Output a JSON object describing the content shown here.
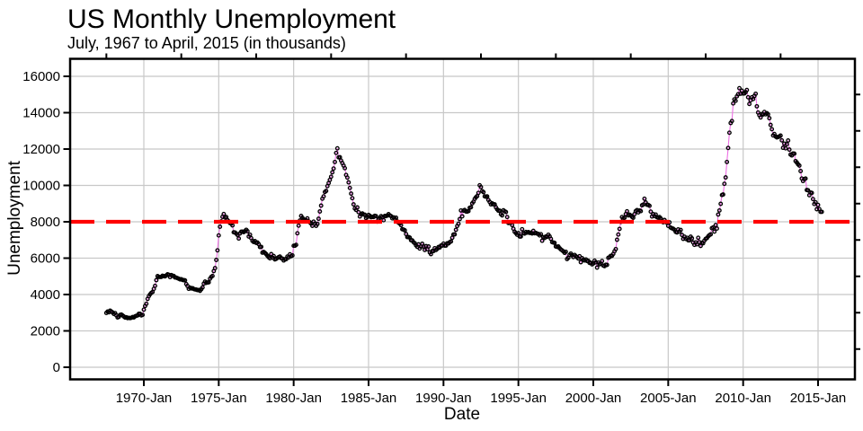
{
  "chart_data": {
    "type": "line",
    "title": "US Monthly Unemployment",
    "subtitle": "July, 1967 to April, 2015 (in thousands)",
    "xlabel": "Date",
    "ylabel": "Unemployment",
    "x_ticks": [
      {
        "t": 1970,
        "label": "1970-Jan"
      },
      {
        "t": 1975,
        "label": "1975-Jan"
      },
      {
        "t": 1980,
        "label": "1980-Jan"
      },
      {
        "t": 1985,
        "label": "1985-Jan"
      },
      {
        "t": 1990,
        "label": "1990-Jan"
      },
      {
        "t": 1995,
        "label": "1995-Jan"
      },
      {
        "t": 2000,
        "label": "2000-Jan"
      },
      {
        "t": 2005,
        "label": "2005-Jan"
      },
      {
        "t": 2010,
        "label": "2010-Jan"
      },
      {
        "t": 2015,
        "label": "2015-Jan"
      }
    ],
    "x_minor_ticks": [
      1967.5,
      1972.5,
      1977.5,
      1982.5,
      1987.5,
      1992.5,
      1997.5,
      2002.5,
      2007.5,
      2012.5
    ],
    "y_ticks": [
      0,
      2000,
      4000,
      6000,
      8000,
      10000,
      12000,
      14000,
      16000
    ],
    "y_minor_ticks": [
      1000,
      3000,
      5000,
      7000,
      9000,
      11000,
      13000,
      15000
    ],
    "ylim": [
      0,
      16000
    ],
    "grid": true,
    "legend": "none",
    "reference_line": {
      "value": 8000,
      "color": "#ff0000",
      "style": "dashed"
    },
    "colors": {
      "grid": "#c8c8c8",
      "frame": "#000000",
      "background": "#ffffff"
    },
    "series": [
      {
        "name": "US unemployment level",
        "units": "thousands",
        "frequency": "monthly",
        "start_year": 1967,
        "start_month": 7,
        "end_year": 2015,
        "end_month": 4,
        "marker": "open-circle",
        "marker_color": "#000000",
        "line_color": "#ee6fe5",
        "values": [
          2990,
          3060,
          3020,
          3110,
          3060,
          3010,
          2930,
          2980,
          2860,
          2740,
          2770,
          2880,
          2900,
          2850,
          2790,
          2730,
          2750,
          2700,
          2720,
          2700,
          2720,
          2760,
          2740,
          2800,
          2830,
          2850,
          2940,
          2940,
          2850,
          2880,
          3170,
          3370,
          3490,
          3760,
          3910,
          4010,
          4090,
          4140,
          4310,
          4480,
          4790,
          5010,
          4970,
          4970,
          4970,
          5030,
          5010,
          5000,
          5050,
          5110,
          5080,
          4960,
          5070,
          5030,
          5020,
          4940,
          4930,
          4900,
          4870,
          4830,
          4840,
          4800,
          4790,
          4780,
          4580,
          4470,
          4310,
          4380,
          4330,
          4350,
          4300,
          4280,
          4270,
          4240,
          4250,
          4200,
          4290,
          4390,
          4600,
          4710,
          4640,
          4660,
          4670,
          4870,
          4970,
          5020,
          5290,
          5450,
          5900,
          6430,
          7250,
          7730,
          8020,
          8270,
          8430,
          8230,
          8260,
          8090,
          8020,
          7930,
          7900,
          7800,
          7420,
          7410,
          7350,
          7280,
          7080,
          7360,
          7450,
          7460,
          7430,
          7480,
          7560,
          7480,
          7190,
          7290,
          7100,
          6950,
          6890,
          6940,
          6840,
          6860,
          6770,
          6610,
          6620,
          6300,
          6340,
          6290,
          6220,
          6130,
          6050,
          5990,
          6220,
          6030,
          6120,
          5930,
          5960,
          6010,
          6060,
          6090,
          6000,
          5970,
          5870,
          5940,
          5940,
          6090,
          6040,
          6210,
          6110,
          6150,
          6680,
          6680,
          6730,
          7370,
          7790,
          8070,
          8320,
          8220,
          8130,
          8060,
          8090,
          8190,
          8020,
          7970,
          7900,
          7780,
          8010,
          7900,
          7780,
          7880,
          8170,
          8570,
          8890,
          9270,
          9400,
          9640,
          9700,
          9960,
          10130,
          10300,
          10480,
          10720,
          10930,
          11290,
          11790,
          12040,
          11540,
          11550,
          11370,
          11230,
          11090,
          10950,
          10580,
          10430,
          10170,
          9860,
          9550,
          9300,
          8960,
          8730,
          8650,
          8790,
          8530,
          8290,
          8420,
          8460,
          8400,
          8390,
          8200,
          8260,
          8380,
          8330,
          8250,
          8270,
          8260,
          8330,
          8310,
          8010,
          8140,
          8210,
          8310,
          8260,
          8090,
          8320,
          8310,
          8340,
          8420,
          8350,
          8310,
          8190,
          8240,
          8160,
          8220,
          8020,
          7950,
          7900,
          7810,
          7590,
          7570,
          7530,
          7330,
          7160,
          7160,
          7130,
          6990,
          6980,
          6880,
          6820,
          6700,
          6620,
          6760,
          6530,
          6630,
          6790,
          6640,
          6450,
          6660,
          6490,
          6640,
          6310,
          6220,
          6390,
          6390,
          6550,
          6450,
          6510,
          6610,
          6590,
          6690,
          6690,
          6800,
          6690,
          6690,
          6820,
          6810,
          6880,
          6920,
          7120,
          7300,
          7310,
          7560,
          7770,
          7890,
          8150,
          8620,
          8300,
          8610,
          8650,
          8570,
          8560,
          8590,
          8770,
          8800,
          9010,
          9100,
          9260,
          9350,
          9410,
          9590,
          10010,
          9910,
          9690,
          9630,
          9400,
          9380,
          9400,
          9200,
          9090,
          8960,
          9010,
          8960,
          8960,
          8790,
          8680,
          8610,
          8610,
          8420,
          8350,
          8630,
          8580,
          8540,
          8260,
          7930,
          7970,
          7950,
          7820,
          7620,
          7450,
          7380,
          7290,
          7380,
          7190,
          7190,
          7590,
          7380,
          7350,
          7440,
          7400,
          7430,
          7390,
          7400,
          7360,
          7500,
          7370,
          7390,
          7350,
          7330,
          7250,
          7320,
          6960,
          7150,
          7110,
          7190,
          7170,
          7290,
          7200,
          7060,
          6880,
          6860,
          6840,
          6640,
          6620,
          6640,
          6550,
          6480,
          6430,
          6370,
          6290,
          6350,
          5950,
          6020,
          6180,
          6250,
          6170,
          6060,
          6180,
          6110,
          6050,
          5980,
          6110,
          5780,
          6000,
          5910,
          5870,
          5930,
          5840,
          5850,
          5740,
          5750,
          5660,
          5710,
          5860,
          5770,
          5480,
          5760,
          5660,
          5700,
          5840,
          5590,
          5560,
          5640,
          5630,
          6020,
          6060,
          6130,
          6130,
          6230,
          6380,
          6500,
          7010,
          7300,
          7610,
          7990,
          8260,
          8180,
          8220,
          8420,
          8580,
          8350,
          8390,
          8340,
          8270,
          8220,
          8420,
          8590,
          8640,
          8520,
          8620,
          8590,
          8910,
          8950,
          9270,
          9060,
          8940,
          8930,
          8880,
          8560,
          8290,
          8420,
          8310,
          8400,
          8250,
          8220,
          8260,
          8190,
          8060,
          7970,
          8100,
          8000,
          7940,
          7780,
          7970,
          7680,
          7640,
          7620,
          7560,
          7440,
          7410,
          7580,
          7460,
          7550,
          7280,
          7060,
          7180,
          7060,
          7120,
          6980,
          6980,
          7180,
          7090,
          6860,
          6730,
          6870,
          6760,
          7120,
          6880,
          6670,
          6850,
          6820,
          6970,
          7060,
          7100,
          7200,
          7270,
          7310,
          7650,
          7690,
          7460,
          7820,
          7630,
          8400,
          8620,
          8990,
          9470,
          9500,
          10090,
          10440,
          11290,
          12060,
          12900,
          13430,
          13540,
          14510,
          14730,
          14650,
          14900,
          15010,
          15350,
          15040,
          15210,
          15050,
          15060,
          15130,
          15250,
          14850,
          14480,
          14680,
          14850,
          14750,
          14920,
          15040,
          14350,
          14010,
          13860,
          13740,
          13930,
          13900,
          14040,
          13910,
          13970,
          13910,
          13700,
          13330,
          13090,
          12750,
          12830,
          12690,
          12640,
          12660,
          12690,
          12740,
          12480,
          12070,
          12300,
          12040,
          12270,
          12470,
          11970,
          11700,
          11650,
          11760,
          11750,
          11340,
          11260,
          11160,
          11090,
          10790,
          10380,
          10240,
          10350,
          10380,
          9750,
          9730,
          9460,
          9610,
          9590,
          9250,
          8980,
          9070,
          8690,
          8930,
          8700,
          8550,
          8550
        ]
      }
    ]
  }
}
